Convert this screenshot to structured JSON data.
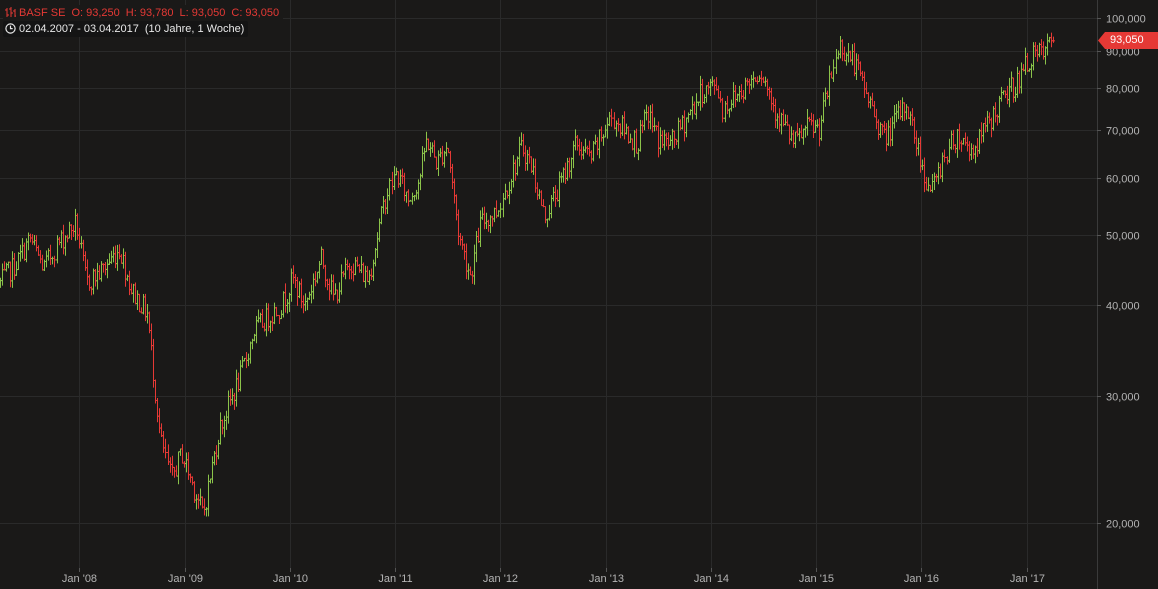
{
  "header": {
    "symbol": "BASF SE",
    "open": "O: 93,250",
    "high": "H: 93,780",
    "low": "L: 93,050",
    "close": "C: 93,050",
    "range": "02.04.2007 - 03.04.2017",
    "period": "(10 Jahre, 1 Woche)"
  },
  "last_price_label": "93,050",
  "colors": {
    "background": "#1a1918",
    "up": "#8bc34a",
    "down": "#e53935",
    "grid": "#2a2a2a",
    "axis_text": "#b4b4b4",
    "badge": "#e53935"
  },
  "chart_data": {
    "type": "ohlc",
    "scale": "log",
    "ylim": [
      17.3,
      104
    ],
    "x_range": [
      "2007-04-02",
      "2017-09-01"
    ],
    "grid": true,
    "y_ticks": [
      {
        "value": 20,
        "label": "20,000"
      },
      {
        "value": 30,
        "label": "30,000"
      },
      {
        "value": 40,
        "label": "40,000"
      },
      {
        "value": 50,
        "label": "50,000"
      },
      {
        "value": 60,
        "label": "60,000"
      },
      {
        "value": 70,
        "label": "70,000"
      },
      {
        "value": 80,
        "label": "80,000"
      },
      {
        "value": 90,
        "label": "90,000"
      },
      {
        "value": 100,
        "label": "100,000"
      }
    ],
    "x_ticks": [
      {
        "date": "2008-01-01",
        "label": "Jan '08"
      },
      {
        "date": "2009-01-01",
        "label": "Jan '09"
      },
      {
        "date": "2010-01-01",
        "label": "Jan '10"
      },
      {
        "date": "2011-01-01",
        "label": "Jan '11"
      },
      {
        "date": "2012-01-01",
        "label": "Jan '12"
      },
      {
        "date": "2013-01-01",
        "label": "Jan '13"
      },
      {
        "date": "2014-01-01",
        "label": "Jan '14"
      },
      {
        "date": "2015-01-01",
        "label": "Jan '15"
      },
      {
        "date": "2016-01-01",
        "label": "Jan '16"
      },
      {
        "date": "2017-01-01",
        "label": "Jan '17"
      }
    ],
    "last_close": 93.05,
    "close_path": [
      [
        "2007-04-02",
        43.0
      ],
      [
        "2007-06-01",
        46.0
      ],
      [
        "2007-07-15",
        49.5
      ],
      [
        "2007-09-01",
        45.0
      ],
      [
        "2007-10-15",
        48.5
      ],
      [
        "2007-12-20",
        52.0
      ],
      [
        "2008-01-25",
        43.0
      ],
      [
        "2008-03-15",
        44.5
      ],
      [
        "2008-05-20",
        48.0
      ],
      [
        "2008-07-01",
        42.0
      ],
      [
        "2008-08-25",
        39.0
      ],
      [
        "2008-10-10",
        26.0
      ],
      [
        "2008-11-15",
        23.0
      ],
      [
        "2008-12-20",
        25.0
      ],
      [
        "2009-03-05",
        20.5
      ],
      [
        "2009-05-01",
        27.0
      ],
      [
        "2009-07-15",
        32.0
      ],
      [
        "2009-09-01",
        37.0
      ],
      [
        "2009-12-01",
        40.0
      ],
      [
        "2010-01-10",
        43.5
      ],
      [
        "2010-02-20",
        40.0
      ],
      [
        "2010-04-20",
        46.5
      ],
      [
        "2010-06-01",
        41.0
      ],
      [
        "2010-08-01",
        46.0
      ],
      [
        "2010-10-01",
        43.5
      ],
      [
        "2010-12-01",
        57.0
      ],
      [
        "2011-01-05",
        61.0
      ],
      [
        "2011-02-15",
        56.0
      ],
      [
        "2011-03-25",
        60.0
      ],
      [
        "2011-04-20",
        68.0
      ],
      [
        "2011-05-25",
        63.0
      ],
      [
        "2011-07-01",
        67.0
      ],
      [
        "2011-08-10",
        50.0
      ],
      [
        "2011-09-20",
        44.0
      ],
      [
        "2011-10-25",
        52.0
      ],
      [
        "2011-12-20",
        54.0
      ],
      [
        "2012-03-15",
        66.5
      ],
      [
        "2012-04-20",
        62.0
      ],
      [
        "2012-06-01",
        53.0
      ],
      [
        "2012-07-20",
        58.0
      ],
      [
        "2012-09-20",
        67.0
      ],
      [
        "2012-11-10",
        64.0
      ],
      [
        "2013-01-20",
        73.0
      ],
      [
        "2013-04-20",
        67.0
      ],
      [
        "2013-05-25",
        74.0
      ],
      [
        "2013-07-01",
        68.0
      ],
      [
        "2013-08-15",
        67.0
      ],
      [
        "2013-10-01",
        72.0
      ],
      [
        "2013-12-01",
        79.0
      ],
      [
        "2014-01-20",
        81.0
      ],
      [
        "2014-02-10",
        75.0
      ],
      [
        "2014-04-20",
        80.0
      ],
      [
        "2014-06-20",
        85.0
      ],
      [
        "2014-08-10",
        75.0
      ],
      [
        "2014-10-15",
        67.0
      ],
      [
        "2014-12-10",
        71.0
      ],
      [
        "2015-01-10",
        70.0
      ],
      [
        "2015-03-20",
        92.0
      ],
      [
        "2015-05-10",
        87.0
      ],
      [
        "2015-06-20",
        79.0
      ],
      [
        "2015-08-25",
        68.0
      ],
      [
        "2015-10-10",
        73.0
      ],
      [
        "2015-11-10",
        76.0
      ],
      [
        "2016-01-20",
        59.0
      ],
      [
        "2016-02-12",
        58.0
      ],
      [
        "2016-03-15",
        64.0
      ],
      [
        "2016-05-01",
        69.0
      ],
      [
        "2016-06-25",
        65.5
      ],
      [
        "2016-08-15",
        71.0
      ],
      [
        "2016-10-15",
        78.0
      ],
      [
        "2016-12-01",
        82.0
      ],
      [
        "2017-01-10",
        88.0
      ],
      [
        "2017-03-01",
        89.5
      ],
      [
        "2017-04-03",
        93.05
      ]
    ]
  }
}
